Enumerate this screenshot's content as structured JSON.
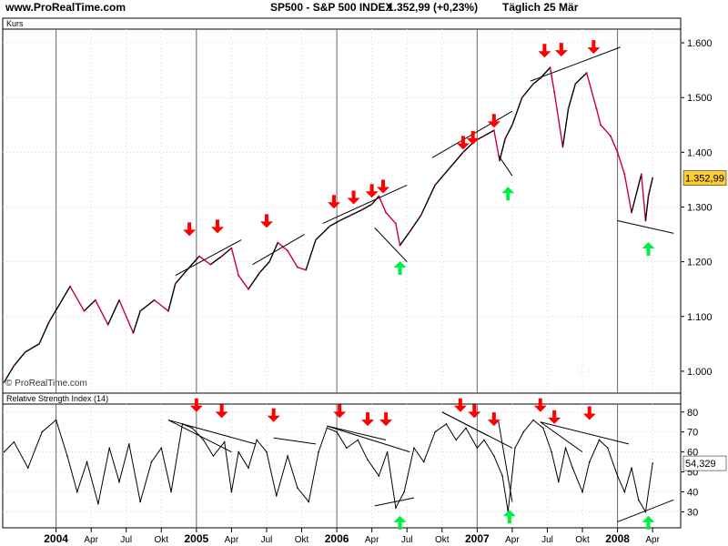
{
  "header": {
    "site": "www.ProRealTime.com",
    "title": "SP500 - S&P 500 INDEX",
    "quote": "1.352,99 (+0,23%)",
    "frequency": "Täglich  25 Mär"
  },
  "colors": {
    "price_up": "#000000",
    "price_down": "#cc0033",
    "rsi_line": "#000000",
    "sell_arrow": "#ff0000",
    "buy_arrow": "#00ee44",
    "last_price_badge": "#ffcc33"
  },
  "chart_data": [
    {
      "type": "line",
      "panel": "price",
      "title": "Kurs",
      "watermark": "© ProRealTime.com",
      "y_tick_labels": [
        "1.000",
        "1.100",
        "1.200",
        "1.300",
        "1.400",
        "1.500",
        "1.600"
      ],
      "y_ticks": [
        1000,
        1100,
        1200,
        1300,
        1400,
        1500,
        1600
      ],
      "ylim": [
        960,
        1625
      ],
      "last_value_label": "1.352,99",
      "last_value": 1352.99,
      "x_tick_labels": [
        "2004",
        "Apr",
        "Jul",
        "Okt",
        "2005",
        "Apr",
        "Jul",
        "Okt",
        "2006",
        "Apr",
        "Jul",
        "Okt",
        "2007",
        "Apr",
        "Jul",
        "Okt",
        "2008",
        "Apr"
      ],
      "x_ticks": [
        2004.0,
        2004.25,
        2004.5,
        2004.75,
        2005.0,
        2005.25,
        2005.5,
        2005.75,
        2006.0,
        2006.25,
        2006.5,
        2006.75,
        2007.0,
        2007.25,
        2007.5,
        2007.75,
        2008.0,
        2008.25
      ],
      "xlim": [
        2003.62,
        2008.45
      ],
      "grid": true,
      "series": [
        {
          "x": [
            2003.63,
            2003.7,
            2003.78,
            2003.88,
            2003.95,
            2004.1,
            2004.2,
            2004.28,
            2004.37,
            2004.45,
            2004.55,
            2004.6,
            2004.7,
            2004.8,
            2004.85,
            2004.95,
            2005.02,
            2005.1,
            2005.18,
            2005.25,
            2005.3,
            2005.37,
            2005.45,
            2005.52,
            2005.58,
            2005.65,
            2005.72,
            2005.78,
            2005.85,
            2005.95,
            2006.02,
            2006.1,
            2006.18,
            2006.25,
            2006.3,
            2006.35,
            2006.42,
            2006.45,
            2006.52,
            2006.6,
            2006.7,
            2006.8,
            2006.9,
            2006.98,
            2007.05,
            2007.12,
            2007.16,
            2007.2,
            2007.25,
            2007.32,
            2007.4,
            2007.45,
            2007.52,
            2007.55,
            2007.61,
            2007.65,
            2007.7,
            2007.78,
            2007.85,
            2007.88,
            2007.95,
            2008.0,
            2008.05,
            2008.1,
            2008.17,
            2008.2,
            2008.22,
            2008.25
          ],
          "y": [
            980,
            1010,
            1035,
            1050,
            1090,
            1155,
            1110,
            1130,
            1085,
            1130,
            1070,
            1110,
            1130,
            1110,
            1160,
            1190,
            1210,
            1195,
            1210,
            1225,
            1175,
            1150,
            1180,
            1200,
            1235,
            1220,
            1190,
            1185,
            1240,
            1265,
            1275,
            1285,
            1295,
            1305,
            1320,
            1290,
            1270,
            1230,
            1255,
            1285,
            1340,
            1370,
            1400,
            1420,
            1430,
            1440,
            1385,
            1425,
            1450,
            1500,
            1525,
            1535,
            1555,
            1510,
            1410,
            1480,
            1525,
            1545,
            1480,
            1450,
            1430,
            1400,
            1360,
            1290,
            1360,
            1275,
            1320,
            1352.99
          ]
        }
      ]
    },
    {
      "type": "line",
      "panel": "indicator",
      "title": "Relative Strength Index (14)",
      "y_tick_labels": [
        "30",
        "40",
        "50",
        "60",
        "70",
        "80"
      ],
      "y_ticks": [
        30,
        40,
        50,
        60,
        70,
        80
      ],
      "ylim": [
        22,
        84
      ],
      "last_value_label": "54,329",
      "last_value": 54.329,
      "grid": true,
      "series": [
        {
          "x": [
            2003.63,
            2003.7,
            2003.8,
            2003.9,
            2004.0,
            2004.08,
            2004.15,
            2004.22,
            2004.3,
            2004.38,
            2004.45,
            2004.52,
            2004.6,
            2004.68,
            2004.75,
            2004.82,
            2004.9,
            2004.97,
            2005.05,
            2005.12,
            2005.2,
            2005.25,
            2005.3,
            2005.37,
            2005.43,
            2005.5,
            2005.57,
            2005.65,
            2005.72,
            2005.8,
            2005.87,
            2005.93,
            2006.0,
            2006.07,
            2006.15,
            2006.22,
            2006.3,
            2006.36,
            2006.42,
            2006.48,
            2006.55,
            2006.62,
            2006.7,
            2006.78,
            2006.85,
            2006.92,
            2007.0,
            2007.05,
            2007.12,
            2007.18,
            2007.22,
            2007.27,
            2007.33,
            2007.4,
            2007.47,
            2007.53,
            2007.58,
            2007.63,
            2007.68,
            2007.75,
            2007.8,
            2007.87,
            2007.93,
            2008.0,
            2008.05,
            2008.1,
            2008.15,
            2008.2,
            2008.25
          ],
          "y": [
            60,
            65,
            52,
            70,
            76,
            58,
            40,
            55,
            34,
            62,
            45,
            64,
            35,
            55,
            62,
            40,
            74,
            72,
            66,
            58,
            65,
            40,
            60,
            52,
            66,
            60,
            38,
            58,
            42,
            35,
            60,
            72,
            70,
            62,
            66,
            56,
            48,
            60,
            32,
            40,
            62,
            55,
            70,
            74,
            66,
            72,
            62,
            66,
            58,
            48,
            30,
            62,
            70,
            76,
            72,
            60,
            45,
            62,
            52,
            40,
            55,
            66,
            62,
            48,
            40,
            52,
            36,
            30,
            54.329
          ]
        }
      ]
    }
  ],
  "annotations": {
    "price_sell_arrows": [
      [
        2004.95,
        1247
      ],
      [
        2005.15,
        1252
      ],
      [
        2005.5,
        1262
      ],
      [
        2005.98,
        1297
      ],
      [
        2006.12,
        1305
      ],
      [
        2006.25,
        1317
      ],
      [
        2006.33,
        1325
      ],
      [
        2006.9,
        1405
      ],
      [
        2006.97,
        1414
      ],
      [
        2007.12,
        1445
      ],
      [
        2007.48,
        1573
      ],
      [
        2007.6,
        1575
      ],
      [
        2007.83,
        1580
      ]
    ],
    "price_buy_arrows": [
      [
        2006.45,
        1201
      ],
      [
        2007.22,
        1337
      ],
      [
        2008.22,
        1236
      ]
    ],
    "price_trendlines": [
      [
        2004.85,
        1175,
        2005.32,
        1240
      ],
      [
        2005.4,
        1195,
        2005.77,
        1250
      ],
      [
        2005.9,
        1270,
        2006.5,
        1340
      ],
      [
        2006.27,
        1262,
        2006.5,
        1200
      ],
      [
        2006.68,
        1390,
        2007.25,
        1475
      ],
      [
        2007.15,
        1395,
        2007.25,
        1357
      ],
      [
        2007.38,
        1530,
        2008.02,
        1592
      ],
      [
        2008.0,
        1275,
        2008.4,
        1252
      ]
    ],
    "rsi_sell_arrows": [
      [
        2005.0,
        80
      ],
      [
        2005.18,
        77
      ],
      [
        2005.55,
        75
      ],
      [
        2006.02,
        77
      ],
      [
        2006.22,
        73
      ],
      [
        2006.35,
        73
      ],
      [
        2006.88,
        80
      ],
      [
        2006.98,
        77
      ],
      [
        2007.12,
        73
      ],
      [
        2007.45,
        80
      ],
      [
        2007.55,
        74
      ],
      [
        2007.8,
        76
      ]
    ],
    "rsi_buy_arrows": [
      [
        2006.45,
        28
      ],
      [
        2007.23,
        31
      ],
      [
        2008.22,
        28
      ]
    ],
    "rsi_trendlines": [
      [
        2004.8,
        76,
        2005.25,
        60
      ],
      [
        2004.8,
        76,
        2005.42,
        64
      ],
      [
        2005.55,
        67,
        2005.85,
        64
      ],
      [
        2005.93,
        73,
        2006.52,
        60
      ],
      [
        2005.93,
        73,
        2006.35,
        66
      ],
      [
        2006.27,
        33,
        2006.55,
        37
      ],
      [
        2006.75,
        80,
        2007.25,
        62
      ],
      [
        2006.75,
        80,
        2007.08,
        68
      ],
      [
        2007.15,
        76,
        2007.25,
        35
      ],
      [
        2007.45,
        75,
        2008.08,
        64
      ],
      [
        2007.45,
        75,
        2007.75,
        60
      ],
      [
        2008.0,
        25,
        2008.4,
        36
      ]
    ]
  }
}
